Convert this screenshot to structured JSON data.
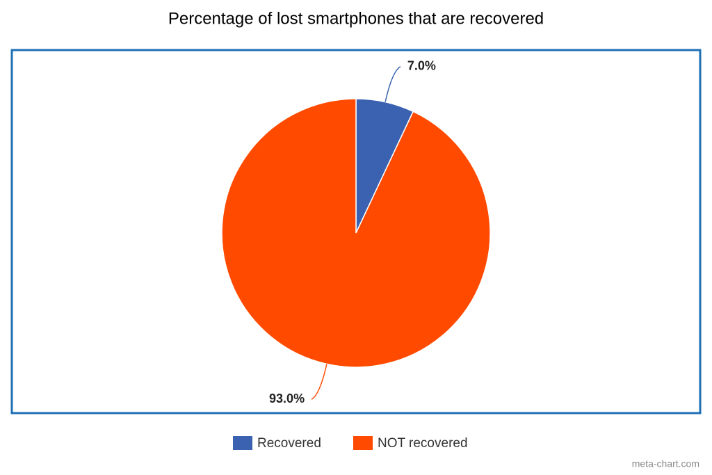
{
  "chart_data": {
    "type": "pie",
    "title": "Percentage of lost smartphones that are recovered",
    "categories": [
      "Recovered",
      "NOT recovered"
    ],
    "values": [
      7,
      93
    ],
    "value_labels": [
      "7.0%",
      "93.0%"
    ],
    "colors": [
      "#3a62b0",
      "#ff4a00"
    ],
    "legend": "bottom",
    "credit": "meta-chart.com"
  }
}
